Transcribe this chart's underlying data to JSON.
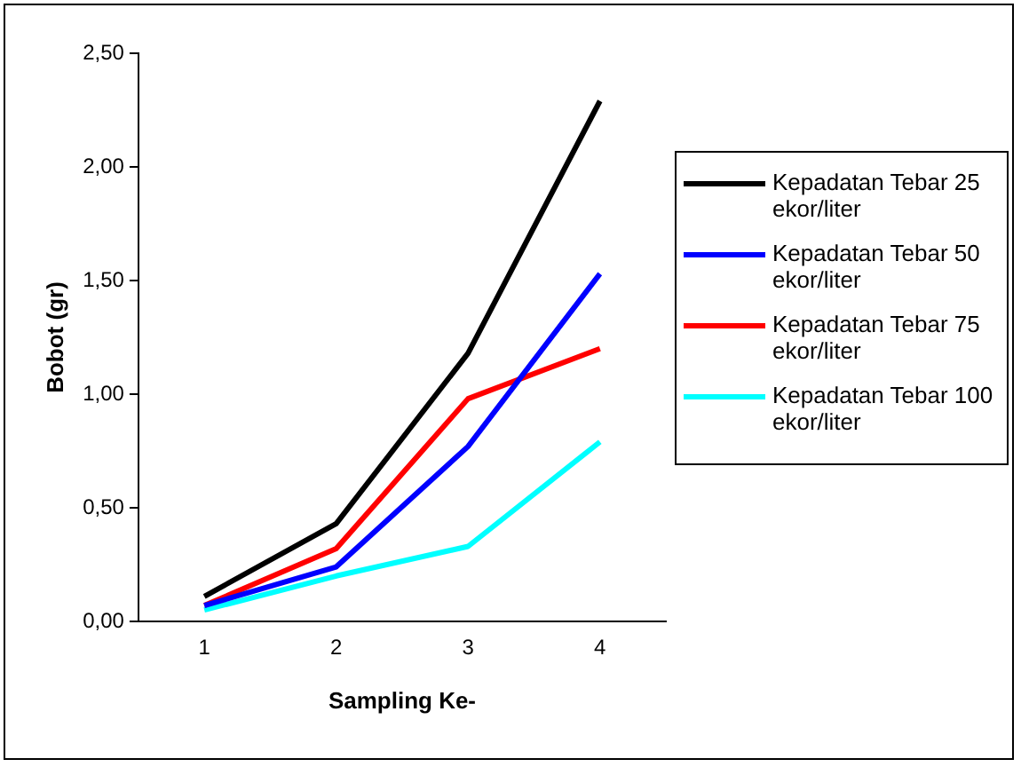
{
  "chart_data": {
    "type": "line",
    "xlabel": "Sampling Ke-",
    "ylabel": "Bobot (gr)",
    "categories": [
      "1",
      "2",
      "3",
      "4"
    ],
    "ylim": [
      0,
      2.5
    ],
    "yticks": [
      {
        "value": 0,
        "label": "0,00"
      },
      {
        "value": 0.5,
        "label": "0,50"
      },
      {
        "value": 1,
        "label": "1,00"
      },
      {
        "value": 1.5,
        "label": "1,50"
      },
      {
        "value": 2,
        "label": "2,00"
      },
      {
        "value": 2.5,
        "label": "2,50"
      }
    ],
    "series": [
      {
        "name": "Kepadatan Tebar 25 ekor/liter",
        "color": "#000000",
        "values": [
          0.11,
          0.43,
          1.18,
          2.29
        ]
      },
      {
        "name": "Kepadatan Tebar 50 ekor/liter",
        "color": "#0000ff",
        "values": [
          0.07,
          0.24,
          0.77,
          1.53
        ]
      },
      {
        "name": "Kepadatan Tebar 75 ekor/liter",
        "color": "#ff0000",
        "values": [
          0.07,
          0.32,
          0.98,
          1.2
        ]
      },
      {
        "name": "Kepadatan Tebar 100 ekor/liter",
        "color": "#00ffff",
        "values": [
          0.05,
          0.2,
          0.33,
          0.79
        ]
      }
    ],
    "grid": false,
    "legend": "right",
    "marker": "none",
    "line_style": "solid"
  }
}
